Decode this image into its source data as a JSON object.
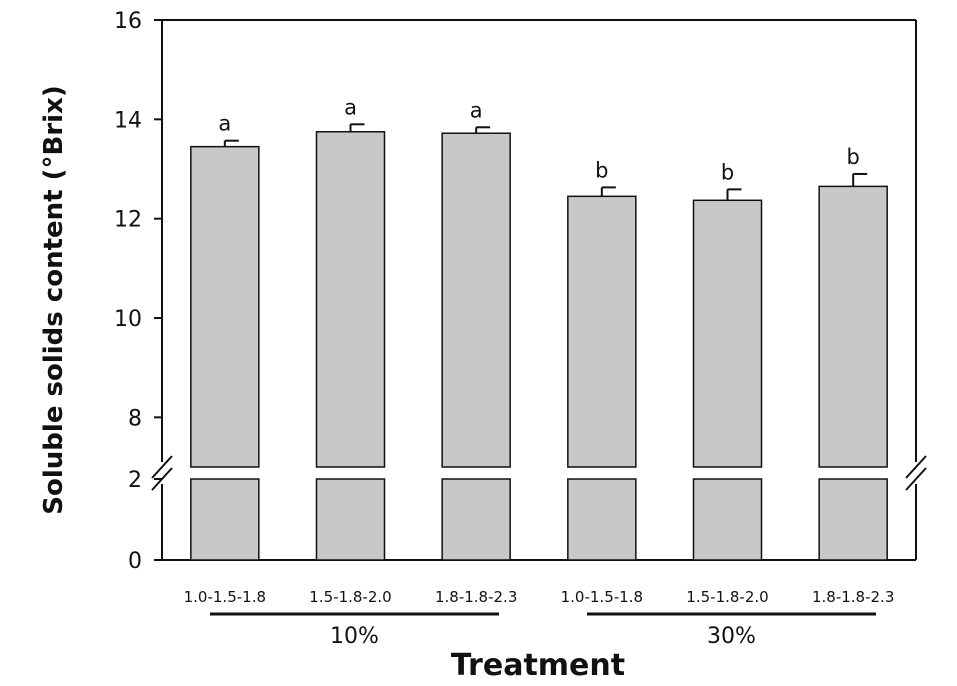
{
  "chart_data": {
    "type": "bar",
    "categories": [
      "1.0-1.5-1.8",
      "1.5-1.8-2.0",
      "1.8-1.8-2.3",
      "1.0-1.5-1.8",
      "1.5-1.8-2.0",
      "1.8-1.8-2.3"
    ],
    "values": [
      13.45,
      13.75,
      13.72,
      12.45,
      12.37,
      12.65
    ],
    "errors": [
      0.12,
      0.15,
      0.12,
      0.18,
      0.22,
      0.25
    ],
    "letters": [
      "a",
      "a",
      "a",
      "b",
      "b",
      "b"
    ],
    "groups": [
      {
        "label": "10%",
        "categories": [
          0,
          1,
          2
        ]
      },
      {
        "label": "30%",
        "categories": [
          3,
          4,
          5
        ]
      }
    ],
    "xlabel": "Treatment",
    "ylabel": "Soluble solids content (°Brix)",
    "axis_break": {
      "lower_range": [
        0,
        2
      ],
      "upper_range": [
        7,
        16
      ]
    },
    "lower_ticks": [
      {
        "value": 0,
        "label": "0"
      },
      {
        "value": 2,
        "label": "2"
      }
    ],
    "upper_ticks": [
      {
        "value": 8,
        "label": "8"
      },
      {
        "value": 10,
        "label": "10"
      },
      {
        "value": 12,
        "label": "12"
      },
      {
        "value": 14,
        "label": "14"
      },
      {
        "value": 16,
        "label": "16"
      }
    ],
    "bar_color": "#c8c8c8",
    "grid": false
  }
}
